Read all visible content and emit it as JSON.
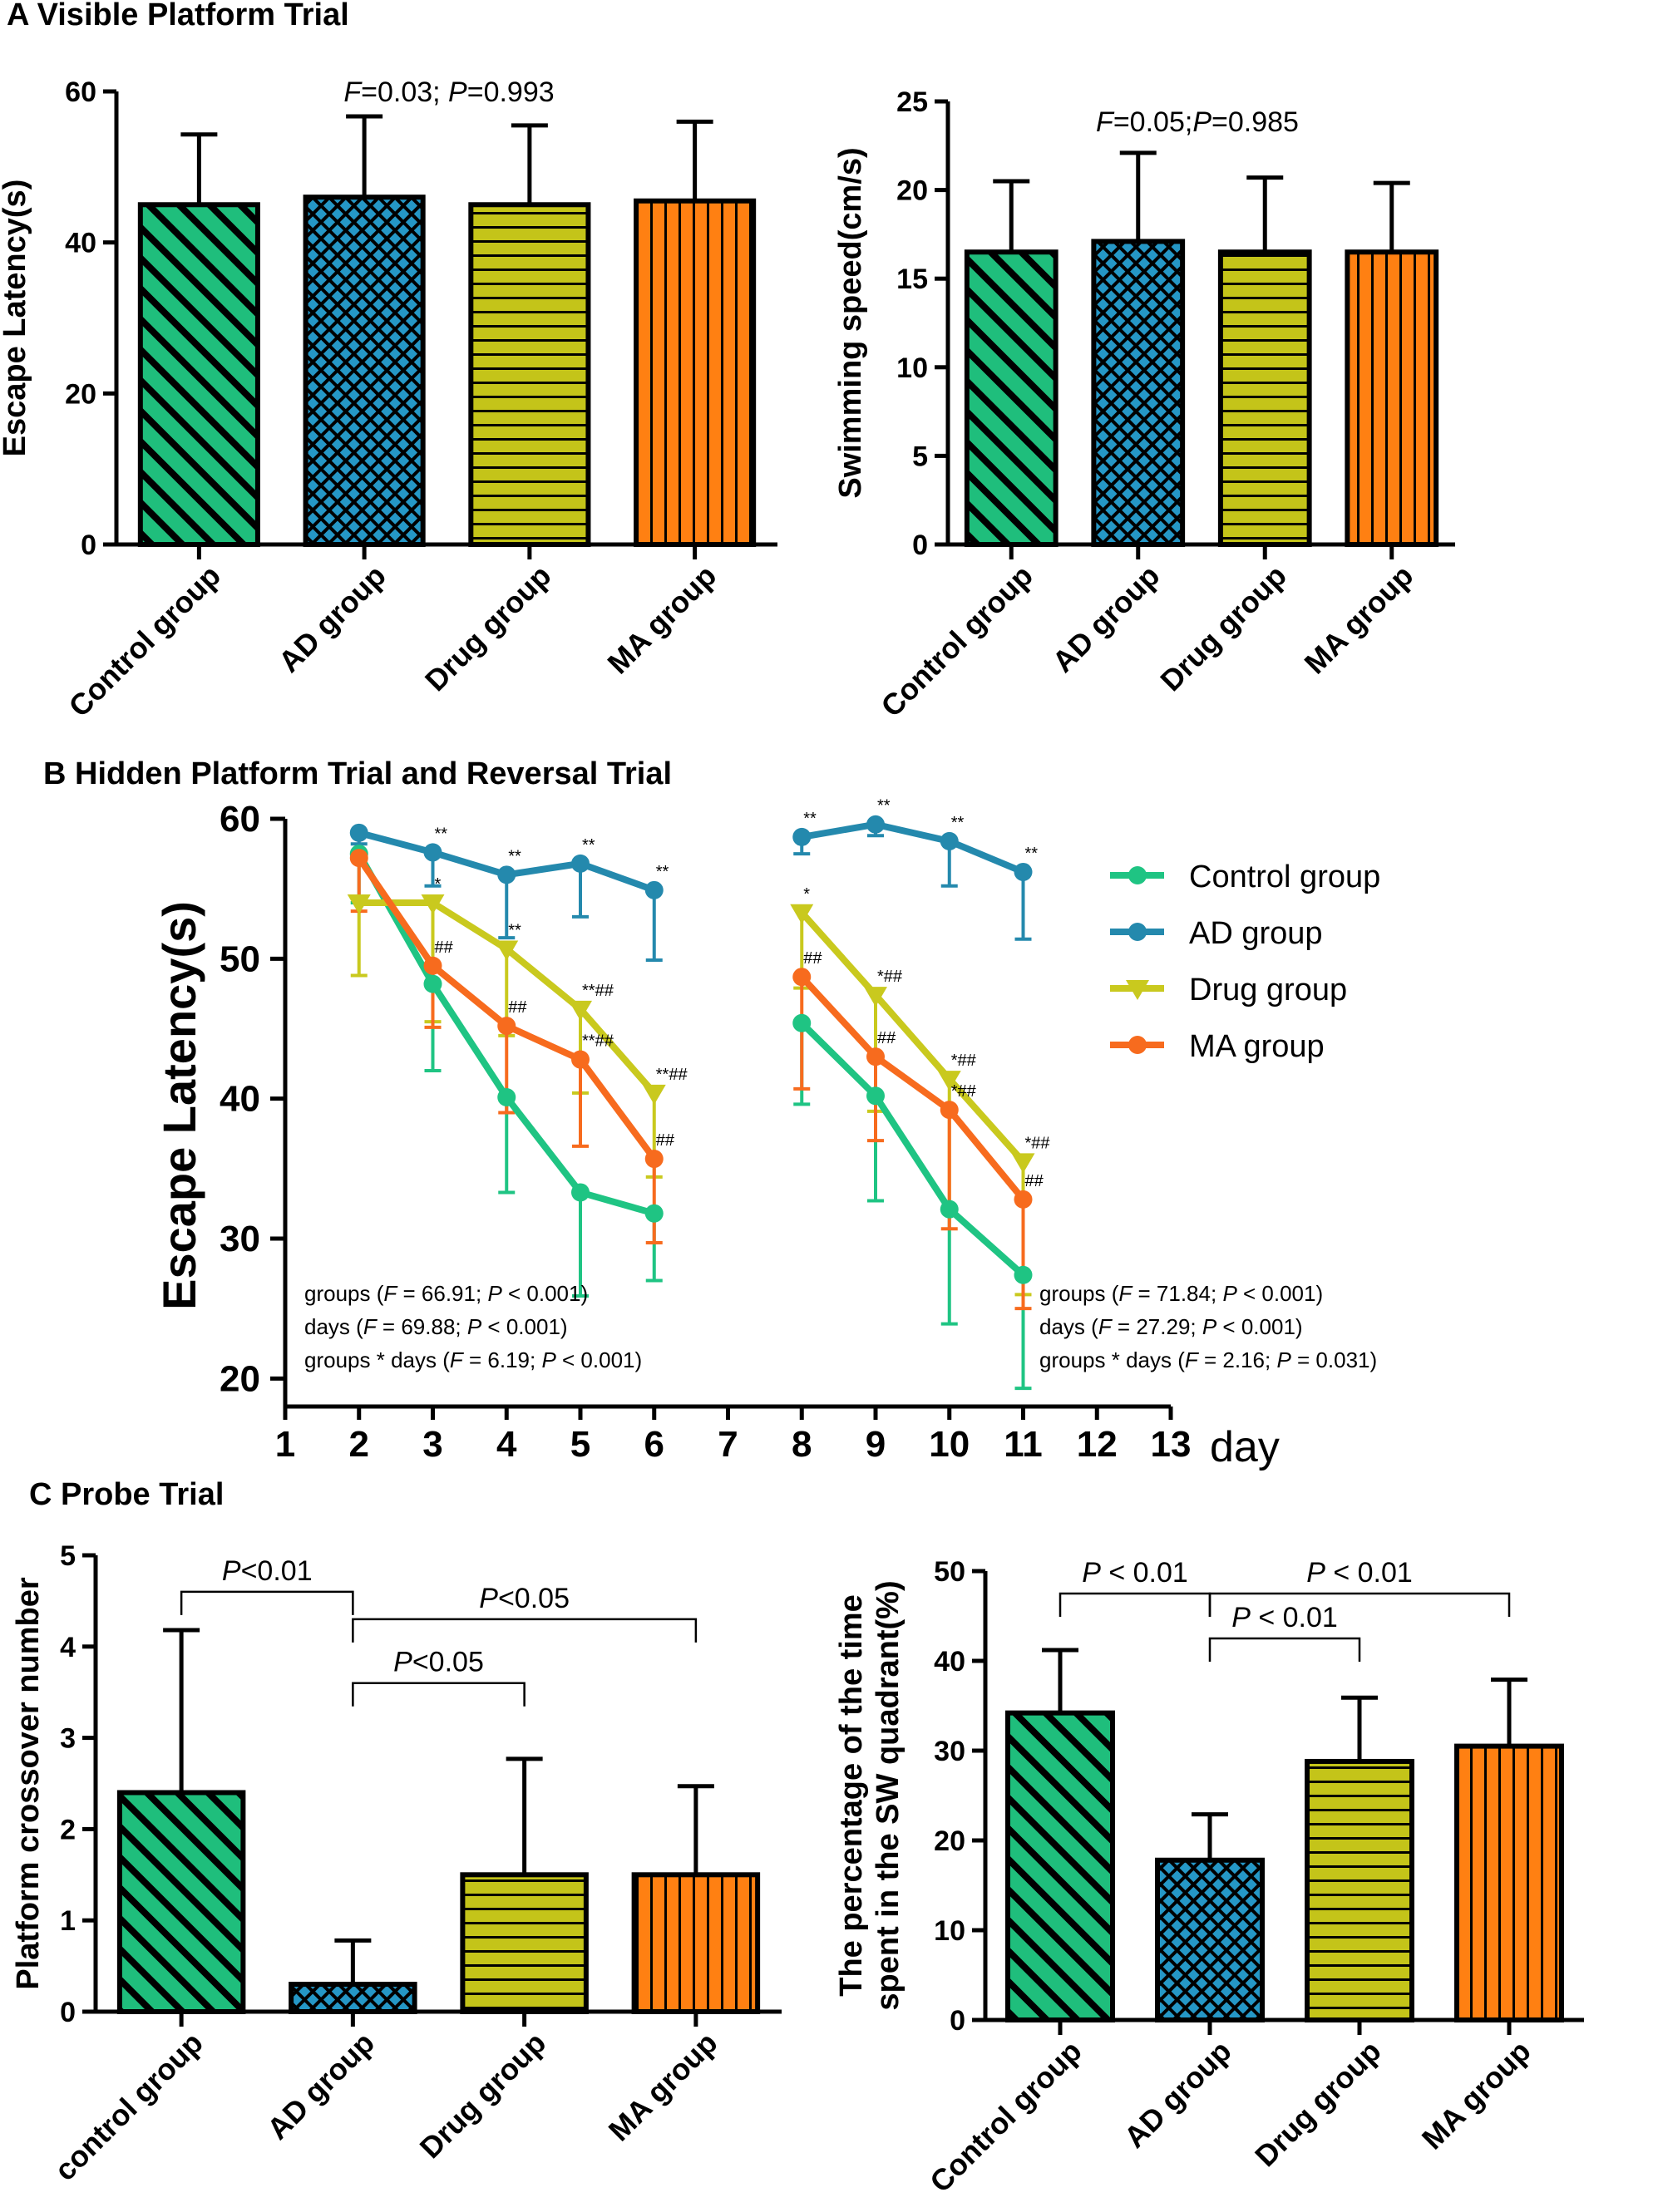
{
  "panels": {
    "a": "A Visible Platform Trial",
    "b": "B Hidden Platform Trial and Reversal Trial",
    "c": "C  Probe Trial"
  },
  "patterns": {
    "Control": {
      "fill": "#1fbe7c",
      "kind": "diag"
    },
    "AD": {
      "fill": "#2597c6",
      "kind": "check"
    },
    "Drug": {
      "fill": "#c4c419",
      "kind": "hstripe"
    },
    "MA": {
      "fill": "#ff8012",
      "kind": "vstripe"
    }
  },
  "chart_data": [
    {
      "id": "A1",
      "type": "bar",
      "title": "A Visible Platform Trial",
      "ylabel": "Escape Latency(s)",
      "ylim": [
        0,
        60
      ],
      "yticks": [
        "0",
        "20",
        "40",
        "60"
      ],
      "categories": [
        "Control group",
        "AD group",
        "Drug group",
        "MA group"
      ],
      "values": [
        45,
        46,
        45,
        45.5
      ],
      "errors": [
        9.3,
        10.7,
        10.5,
        10.5
      ],
      "annotation": {
        "F": "F",
        "f_value": "=0.03; ",
        "P": "P",
        "p_value": "=0.993"
      }
    },
    {
      "id": "A2",
      "type": "bar",
      "ylabel": "Swimming speed(cm/s)",
      "ylim": [
        0,
        25
      ],
      "yticks": [
        "0",
        "5",
        "10",
        "15",
        "20",
        "25"
      ],
      "categories": [
        "Control group",
        "AD group",
        "Drug group",
        "MA group"
      ],
      "values": [
        16.5,
        17.1,
        16.5,
        16.5
      ],
      "errors": [
        4.0,
        5.0,
        4.2,
        3.9
      ],
      "annotation": {
        "F": "F",
        "f_value": "=0.05;",
        "P": "P",
        "p_value": "=0.985"
      }
    },
    {
      "id": "B",
      "type": "line",
      "title": "B Hidden Platform Trial and Reversal Trial",
      "ylabel": "Escape Latency(s)",
      "xlabel": "day",
      "ylim": [
        18,
        60
      ],
      "yticks": [
        "20",
        "30",
        "40",
        "50",
        "60"
      ],
      "xlim": [
        1,
        13
      ],
      "xticks": [
        "1",
        "2",
        "3",
        "4",
        "5",
        "6",
        "7",
        "8",
        "9",
        "10",
        "11",
        "12",
        "13"
      ],
      "series": [
        {
          "name": "Control group",
          "color": "#1fc483",
          "marker": "circle",
          "segments": [
            {
              "x": [
                2,
                3,
                4,
                5,
                6
              ],
              "y": [
                57.5,
                48.2,
                40.1,
                33.3,
                31.8
              ],
              "err": [
                3.5,
                6.2,
                6.8,
                7.4,
                4.8
              ]
            },
            {
              "x": [
                8,
                9,
                10,
                11
              ],
              "y": [
                45.4,
                40.2,
                32.1,
                27.4
              ],
              "err": [
                5.8,
                7.5,
                8.2,
                8.1
              ]
            }
          ]
        },
        {
          "name": "AD group",
          "color": "#2489ad",
          "marker": "circle",
          "segments": [
            {
              "x": [
                2,
                3,
                4,
                5,
                6
              ],
              "y": [
                59.0,
                57.6,
                56.0,
                56.8,
                54.9
              ],
              "err": [
                0.8,
                2.4,
                4.5,
                3.8,
                5.0
              ]
            },
            {
              "x": [
                8,
                9,
                10,
                11
              ],
              "y": [
                58.7,
                59.6,
                58.4,
                56.2
              ],
              "err": [
                1.2,
                0.8,
                3.2,
                4.8
              ]
            }
          ]
        },
        {
          "name": "Drug group",
          "color": "#c9c91e",
          "marker": "triangle",
          "segments": [
            {
              "x": [
                2,
                3,
                4,
                5,
                6
              ],
              "y": [
                54.0,
                54.0,
                50.7,
                46.4,
                40.4
              ],
              "err": [
                5.2,
                8.5,
                6.2,
                6.0,
                6.0
              ]
            },
            {
              "x": [
                8,
                9,
                10,
                11
              ],
              "y": [
                53.3,
                47.4,
                41.4,
                35.5
              ],
              "err": [
                5.4,
                8.3,
                9.2,
                9.5
              ]
            }
          ]
        },
        {
          "name": "MA group",
          "color": "#f76b1e",
          "marker": "circle",
          "segments": [
            {
              "x": [
                2,
                3,
                4,
                5,
                6
              ],
              "y": [
                57.2,
                49.5,
                45.2,
                42.8,
                35.7
              ],
              "err": [
                3.8,
                4.4,
                6.2,
                6.2,
                6.0
              ]
            },
            {
              "x": [
                8,
                9,
                10,
                11
              ],
              "y": [
                48.7,
                43.0,
                39.2,
                32.8
              ],
              "err": [
                8.0,
                6.0,
                8.5,
                7.8
              ]
            }
          ]
        }
      ],
      "sig_marks": [
        {
          "x": 3,
          "y": 57.6,
          "text": "**"
        },
        {
          "x": 4,
          "y": 56.0,
          "text": "**"
        },
        {
          "x": 5,
          "y": 56.8,
          "text": "**"
        },
        {
          "x": 6,
          "y": 54.9,
          "text": "**"
        },
        {
          "x": 8,
          "y": 58.7,
          "text": "**"
        },
        {
          "x": 9,
          "y": 59.6,
          "text": "**"
        },
        {
          "x": 10,
          "y": 58.4,
          "text": "**"
        },
        {
          "x": 11,
          "y": 56.2,
          "text": "**"
        },
        {
          "x": 3,
          "y": 54.0,
          "text": "*"
        },
        {
          "x": 3,
          "y": 49.5,
          "text": "##"
        },
        {
          "x": 4,
          "y": 50.7,
          "text": "**"
        },
        {
          "x": 4,
          "y": 45.2,
          "text": "##"
        },
        {
          "x": 5,
          "y": 46.4,
          "text": "**##"
        },
        {
          "x": 5,
          "y": 42.8,
          "text": "**##"
        },
        {
          "x": 6,
          "y": 40.4,
          "text": "**##"
        },
        {
          "x": 6,
          "y": 35.7,
          "text": "##"
        },
        {
          "x": 8,
          "y": 53.3,
          "text": "*"
        },
        {
          "x": 8,
          "y": 48.7,
          "text": "##"
        },
        {
          "x": 9,
          "y": 47.4,
          "text": "*##"
        },
        {
          "x": 9,
          "y": 43.0,
          "text": "##"
        },
        {
          "x": 10,
          "y": 41.4,
          "text": "*##"
        },
        {
          "x": 10,
          "y": 39.2,
          "text": "*##"
        },
        {
          "x": 11,
          "y": 35.5,
          "text": "*##"
        },
        {
          "x": 11,
          "y": 32.8,
          "text": "##"
        }
      ],
      "stats_left": [
        {
          "pre": "groups (",
          "F": "F",
          "f_value": " = 66.91; ",
          "P": "P",
          "p_value": " < 0.001)"
        },
        {
          "pre": "days (",
          "F": "F",
          "f_value": " = 69.88; ",
          "P": "P",
          "p_value": " < 0.001)"
        },
        {
          "pre": "groups * days (",
          "F": "F",
          "f_value": " = 6.19; ",
          "P": "P",
          "p_value": " < 0.001)"
        }
      ],
      "stats_right": [
        {
          "pre": "groups (",
          "F": "F",
          "f_value": " = 71.84; ",
          "P": "P",
          "p_value": " < 0.001)"
        },
        {
          "pre": "days (",
          "F": "F",
          "f_value": " = 27.29; ",
          "P": "P",
          "p_value": " < 0.001)"
        },
        {
          "pre": "groups * days (",
          "F": "F",
          "f_value": " = 2.16; ",
          "P": "P",
          "p_value": " = 0.031)"
        }
      ]
    },
    {
      "id": "C1",
      "type": "bar",
      "title": "C  Probe Trial",
      "ylabel": "Platform crossover number",
      "ylim": [
        0,
        5
      ],
      "yticks": [
        "0",
        "1",
        "2",
        "3",
        "4",
        "5"
      ],
      "categories": [
        "control group",
        "AD group",
        "Drug group",
        "MA group"
      ],
      "values": [
        2.4,
        0.3,
        1.5,
        1.5
      ],
      "errors": [
        1.78,
        0.48,
        1.27,
        0.97
      ],
      "brackets": [
        {
          "from": 0,
          "to": 1,
          "y": 4.6,
          "P": "P",
          "label": "<0.01"
        },
        {
          "from": 1,
          "to": 3,
          "y": 4.3,
          "P": "P",
          "label": "<0.05"
        },
        {
          "from": 1,
          "to": 2,
          "y": 3.6,
          "P": "P",
          "label": "<0.05"
        }
      ]
    },
    {
      "id": "C2",
      "type": "bar",
      "ylabel_line1": "The percentage of the time",
      "ylabel_line2": "spent in the SW quadrant(%)",
      "ylim": [
        0,
        50
      ],
      "yticks": [
        "0",
        "10",
        "20",
        "30",
        "40",
        "50"
      ],
      "categories": [
        "Control group",
        "AD group",
        "Drug group",
        "MA group"
      ],
      "values": [
        34.2,
        17.8,
        28.8,
        30.5
      ],
      "errors": [
        7.0,
        5.1,
        7.1,
        7.4
      ],
      "brackets": [
        {
          "from": 0,
          "to": 1,
          "y": 47.5,
          "P": "P",
          "label": " < 0.01"
        },
        {
          "from": 1,
          "to": 3,
          "y": 47.5,
          "P": "P",
          "label": " < 0.01"
        },
        {
          "from": 1,
          "to": 2,
          "y": 42.5,
          "P": "P",
          "label": " < 0.01"
        }
      ]
    }
  ]
}
